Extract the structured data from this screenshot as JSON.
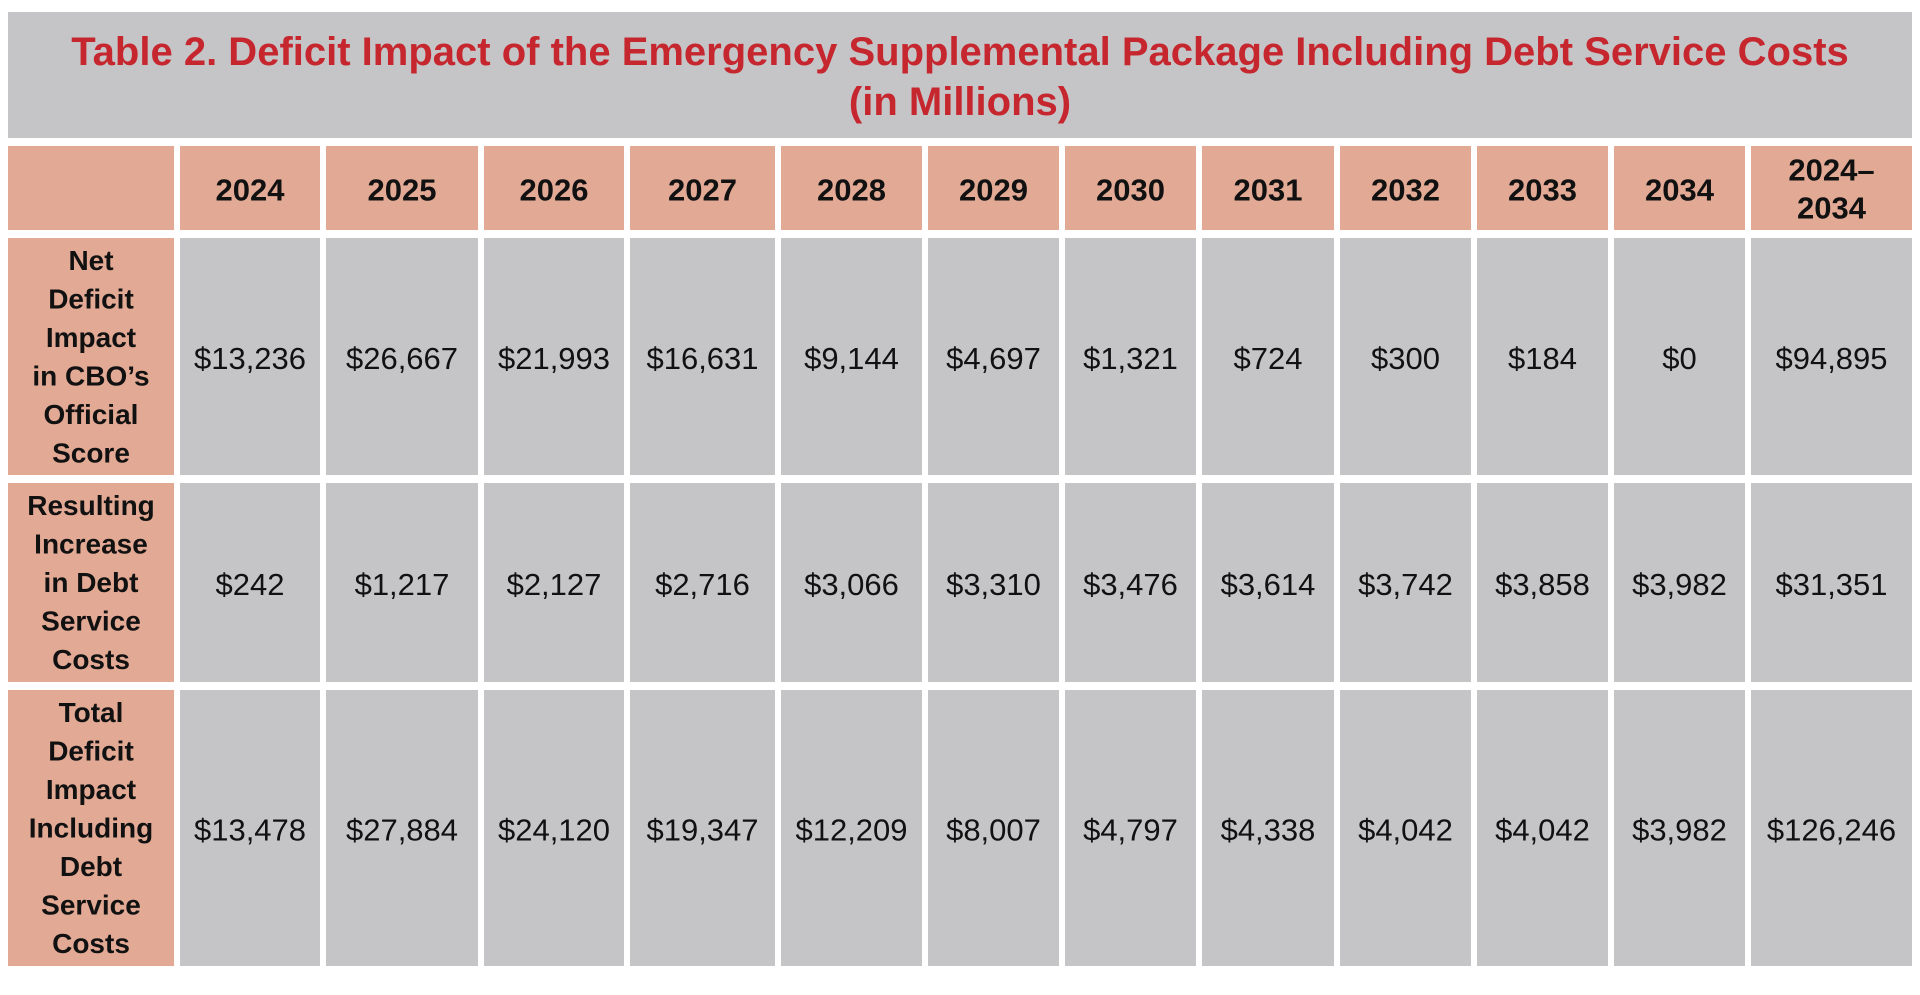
{
  "colors": {
    "title_text": "#c6262e",
    "title_background": "#c5c5c7",
    "header_background": "#e2a995",
    "row_label_background": "#e2a995",
    "cell_background": "#c5c5c7",
    "text": "#111111"
  },
  "chart_data": {
    "type": "table",
    "title_lines": [
      "Table 2. Deficit Impact of the Emergency Supplemental Package Including Debt Service Costs",
      "(in Millions)"
    ],
    "columns": [
      "2024",
      "2025",
      "2026",
      "2027",
      "2028",
      "2029",
      "2030",
      "2031",
      "2032",
      "2033",
      "2034",
      "2024–2034"
    ],
    "rows": [
      {
        "label": "Net Deficit Impact in CBO’s Official Score",
        "label_lines": [
          "Net",
          "Deficit",
          "Impact",
          "in CBO’s",
          "Official",
          "Score"
        ],
        "values": [
          13236,
          26667,
          21993,
          16631,
          9144,
          4697,
          1321,
          724,
          300,
          184,
          0,
          94895
        ],
        "display": [
          "$13,236",
          "$26,667",
          "$21,993",
          "$16,631",
          "$9,144",
          "$4,697",
          "$1,321",
          "$724",
          "$300",
          "$184",
          "$0",
          "$94,895"
        ]
      },
      {
        "label": "Resulting Increase in Debt Service Costs",
        "label_lines": [
          "Resulting",
          "Increase",
          "in Debt",
          "Service",
          "Costs"
        ],
        "values": [
          242,
          1217,
          2127,
          2716,
          3066,
          3310,
          3476,
          3614,
          3742,
          3858,
          3982,
          31351
        ],
        "display": [
          "$242",
          "$1,217",
          "$2,127",
          "$2,716",
          "$3,066",
          "$3,310",
          "$3,476",
          "$3,614",
          "$3,742",
          "$3,858",
          "$3,982",
          "$31,351"
        ]
      },
      {
        "label": "Total Deficit Impact Including Debt Service Costs",
        "label_lines": [
          "Total",
          "Deficit",
          "Impact",
          "Including",
          "Debt",
          "Service",
          "Costs"
        ],
        "values": [
          13478,
          27884,
          24120,
          19347,
          12209,
          8007,
          4797,
          4338,
          4042,
          4042,
          3982,
          126246
        ],
        "display": [
          "$13,478",
          "$27,884",
          "$24,120",
          "$19,347",
          "$12,209",
          "$8,007",
          "$4,797",
          "$4,338",
          "$4,042",
          "$4,042",
          "$3,982",
          "$126,246"
        ]
      }
    ]
  }
}
